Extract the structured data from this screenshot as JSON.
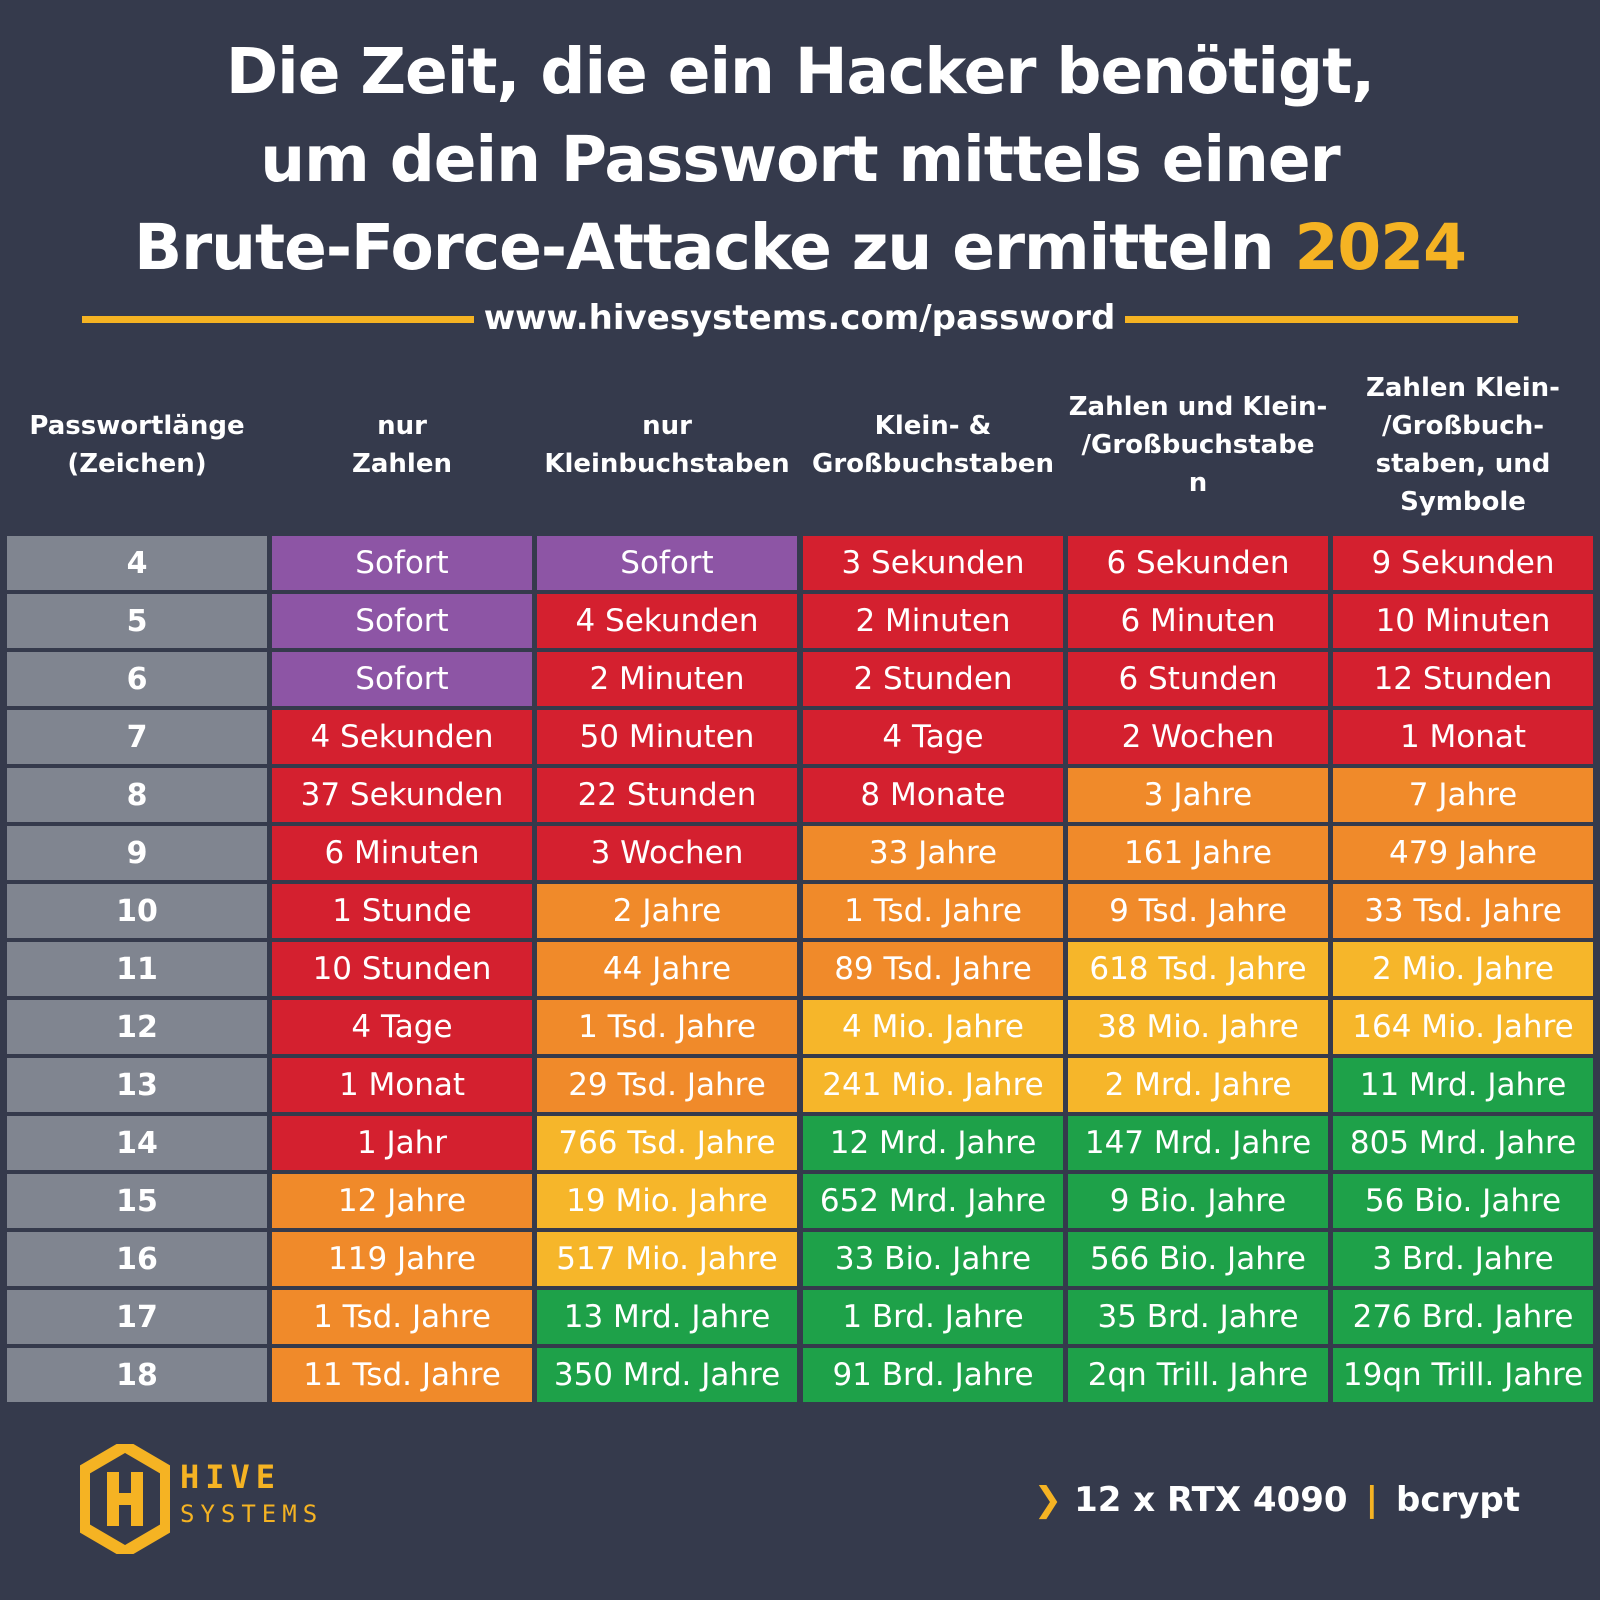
{
  "title": {
    "line1": "Die Zeit, die ein Hacker benötigt,",
    "line2": "um dein Passwort mittels einer",
    "line3": "Brute-Force-Attacke zu ermitteln",
    "year": "2024"
  },
  "source_url": "www.hivesystems.com/password",
  "colors": {
    "background": "#353a4c",
    "accent": "#f5b323",
    "purple": "#8d55a5",
    "red": "#d4202f",
    "orange": "#f08a2a",
    "yellow": "#f6b62a",
    "green": "#1ea149",
    "row_label": "#808590"
  },
  "chart_data": {
    "type": "table",
    "row_header": "Passwortlänge\n(Zeichen)",
    "columns": [
      "nur\nZahlen",
      "nur\nKleinbuchstaben",
      "Klein- &\nGroßbuchstaben",
      "Zahlen und Klein-\n/Großbuchstabe\nn",
      "Zahlen Klein-\n/Großbuch-\nstaben, und\nSymbole"
    ],
    "rows": [
      {
        "length": "4",
        "cells": [
          {
            "text": "Sofort",
            "level": "purple"
          },
          {
            "text": "Sofort",
            "level": "purple"
          },
          {
            "text": "3 Sekunden",
            "level": "red"
          },
          {
            "text": "6 Sekunden",
            "level": "red"
          },
          {
            "text": "9 Sekunden",
            "level": "red"
          }
        ]
      },
      {
        "length": "5",
        "cells": [
          {
            "text": "Sofort",
            "level": "purple"
          },
          {
            "text": "4 Sekunden",
            "level": "red"
          },
          {
            "text": "2 Minuten",
            "level": "red"
          },
          {
            "text": "6 Minuten",
            "level": "red"
          },
          {
            "text": "10 Minuten",
            "level": "red"
          }
        ]
      },
      {
        "length": "6",
        "cells": [
          {
            "text": "Sofort",
            "level": "purple"
          },
          {
            "text": "2 Minuten",
            "level": "red"
          },
          {
            "text": "2 Stunden",
            "level": "red"
          },
          {
            "text": "6 Stunden",
            "level": "red"
          },
          {
            "text": "12 Stunden",
            "level": "red"
          }
        ]
      },
      {
        "length": "7",
        "cells": [
          {
            "text": "4 Sekunden",
            "level": "red"
          },
          {
            "text": "50 Minuten",
            "level": "red"
          },
          {
            "text": "4 Tage",
            "level": "red"
          },
          {
            "text": "2 Wochen",
            "level": "red"
          },
          {
            "text": "1 Monat",
            "level": "red"
          }
        ]
      },
      {
        "length": "8",
        "cells": [
          {
            "text": "37 Sekunden",
            "level": "red"
          },
          {
            "text": "22 Stunden",
            "level": "red"
          },
          {
            "text": "8 Monate",
            "level": "red"
          },
          {
            "text": "3 Jahre",
            "level": "orange"
          },
          {
            "text": "7 Jahre",
            "level": "orange"
          }
        ]
      },
      {
        "length": "9",
        "cells": [
          {
            "text": "6 Minuten",
            "level": "red"
          },
          {
            "text": "3 Wochen",
            "level": "red"
          },
          {
            "text": "33 Jahre",
            "level": "orange"
          },
          {
            "text": "161 Jahre",
            "level": "orange"
          },
          {
            "text": "479 Jahre",
            "level": "orange"
          }
        ]
      },
      {
        "length": "10",
        "cells": [
          {
            "text": "1 Stunde",
            "level": "red"
          },
          {
            "text": "2 Jahre",
            "level": "orange"
          },
          {
            "text": "1 Tsd. Jahre",
            "level": "orange"
          },
          {
            "text": "9 Tsd. Jahre",
            "level": "orange"
          },
          {
            "text": "33 Tsd. Jahre",
            "level": "orange"
          }
        ]
      },
      {
        "length": "11",
        "cells": [
          {
            "text": "10 Stunden",
            "level": "red"
          },
          {
            "text": "44 Jahre",
            "level": "orange"
          },
          {
            "text": "89 Tsd. Jahre",
            "level": "orange"
          },
          {
            "text": "618 Tsd. Jahre",
            "level": "yellow"
          },
          {
            "text": "2 Mio. Jahre",
            "level": "yellow"
          }
        ]
      },
      {
        "length": "12",
        "cells": [
          {
            "text": "4 Tage",
            "level": "red"
          },
          {
            "text": "1 Tsd. Jahre",
            "level": "orange"
          },
          {
            "text": "4 Mio. Jahre",
            "level": "yellow"
          },
          {
            "text": "38 Mio. Jahre",
            "level": "yellow"
          },
          {
            "text": "164 Mio. Jahre",
            "level": "yellow"
          }
        ]
      },
      {
        "length": "13",
        "cells": [
          {
            "text": "1 Monat",
            "level": "red"
          },
          {
            "text": "29 Tsd. Jahre",
            "level": "orange"
          },
          {
            "text": "241 Mio. Jahre",
            "level": "yellow"
          },
          {
            "text": "2 Mrd. Jahre",
            "level": "yellow"
          },
          {
            "text": "11 Mrd. Jahre",
            "level": "green"
          }
        ]
      },
      {
        "length": "14",
        "cells": [
          {
            "text": "1 Jahr",
            "level": "red"
          },
          {
            "text": "766 Tsd. Jahre",
            "level": "yellow"
          },
          {
            "text": "12 Mrd. Jahre",
            "level": "green"
          },
          {
            "text": "147 Mrd. Jahre",
            "level": "green"
          },
          {
            "text": "805 Mrd. Jahre",
            "level": "green"
          }
        ]
      },
      {
        "length": "15",
        "cells": [
          {
            "text": "12 Jahre",
            "level": "orange"
          },
          {
            "text": "19 Mio. Jahre",
            "level": "yellow"
          },
          {
            "text": "652 Mrd. Jahre",
            "level": "green"
          },
          {
            "text": "9 Bio. Jahre",
            "level": "green"
          },
          {
            "text": "56 Bio. Jahre",
            "level": "green"
          }
        ]
      },
      {
        "length": "16",
        "cells": [
          {
            "text": "119 Jahre",
            "level": "orange"
          },
          {
            "text": "517 Mio. Jahre",
            "level": "yellow"
          },
          {
            "text": "33 Bio. Jahre",
            "level": "green"
          },
          {
            "text": "566 Bio. Jahre",
            "level": "green"
          },
          {
            "text": "3 Brd. Jahre",
            "level": "green"
          }
        ]
      },
      {
        "length": "17",
        "cells": [
          {
            "text": "1 Tsd. Jahre",
            "level": "orange"
          },
          {
            "text": "13 Mrd. Jahre",
            "level": "green"
          },
          {
            "text": "1 Brd. Jahre",
            "level": "green"
          },
          {
            "text": "35 Brd. Jahre",
            "level": "green"
          },
          {
            "text": "276 Brd. Jahre",
            "level": "green"
          }
        ]
      },
      {
        "length": "18",
        "cells": [
          {
            "text": "11 Tsd. Jahre",
            "level": "orange"
          },
          {
            "text": "350 Mrd. Jahre",
            "level": "green"
          },
          {
            "text": "91 Brd. Jahre",
            "level": "green"
          },
          {
            "text": "2qn Trill. Jahre",
            "level": "green"
          },
          {
            "text": "19qn Trill. Jahre",
            "level": "green"
          }
        ]
      }
    ]
  },
  "logo": {
    "line1": "HIVE",
    "line2": "SYSTEMS",
    "icon": "hive-hexagon-logo"
  },
  "footer": {
    "hardware": "12 x RTX 4090",
    "separator": "|",
    "hash": "bcrypt",
    "chevron_icon": "chevron-right-icon"
  }
}
